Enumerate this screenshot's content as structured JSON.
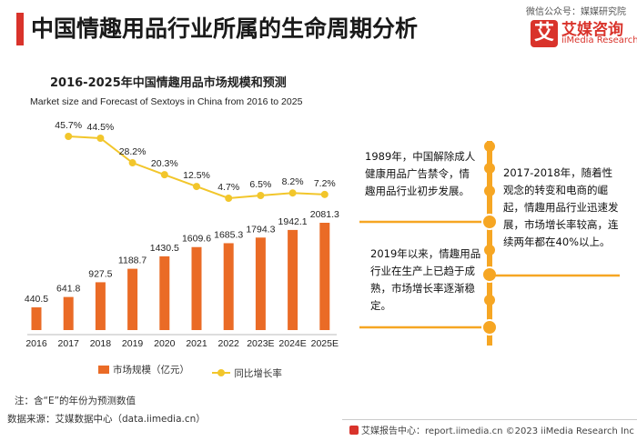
{
  "page_title": "中国情趣用品行业所属的生命周期分析",
  "wechat_label": "微信公众号：媒媒研究院",
  "logo": {
    "mark": "艾",
    "name_cn": "艾媒咨询",
    "name_en": "iiMedia Research"
  },
  "note": "注：含“E”的年份为预测数值",
  "source": "数据来源：艾媒数据中心（data.iimedia.cn）",
  "footer": "艾媒报告中心：report.iimedia.cn ©2023  iiMedia Research  Inc",
  "timeline": [
    {
      "text": "1989年，中国解除成人健康用品广告禁令，情趣用品行业初步发展。"
    },
    {
      "text": "2017-2018年，随着性观念的转变和电商的崛起，情趣用品行业迅速发展，市场增长率较高，连续两年都在40%以上。"
    },
    {
      "text": "2019年以来，情趣用品行业在生产上已趋于成熟，市场增长率逐渐稳定。"
    }
  ],
  "colors": {
    "accent": "#d9332b",
    "bar": "#ea6b26",
    "line": "#f2c62b",
    "timeline": "#f6a623"
  },
  "chart_data": {
    "type": "bar",
    "title": "2016-2025年中国情趣用品市场规模和预测",
    "subtitle": "Market size and Forecast of Sextoys in China from 2016 to 2025",
    "categories": [
      "2016",
      "2017",
      "2018",
      "2019",
      "2020",
      "2021",
      "2022",
      "2023E",
      "2024E",
      "2025E"
    ],
    "series": [
      {
        "name": "市场规模（亿元）",
        "type": "bar",
        "values": [
          440.5,
          641.8,
          927.5,
          1188.7,
          1430.5,
          1609.6,
          1685.3,
          1794.3,
          1942.1,
          2081.3
        ],
        "labels": [
          "440.5",
          "641.8",
          "927.5",
          "1188.7",
          "1430.5",
          "1609.6",
          "1685.3",
          "1794.3",
          "1942.1",
          "2081.3"
        ]
      },
      {
        "name": "同比增长率",
        "type": "line",
        "values": [
          null,
          45.7,
          44.5,
          28.2,
          20.3,
          12.5,
          4.7,
          6.5,
          8.2,
          7.2
        ],
        "labels": [
          null,
          "45.7%",
          "44.5%",
          "28.2%",
          "20.3%",
          "12.5%",
          "4.7%",
          "6.5%",
          "8.2%",
          "7.2%"
        ]
      }
    ],
    "legend": "bottom",
    "grid": false
  }
}
